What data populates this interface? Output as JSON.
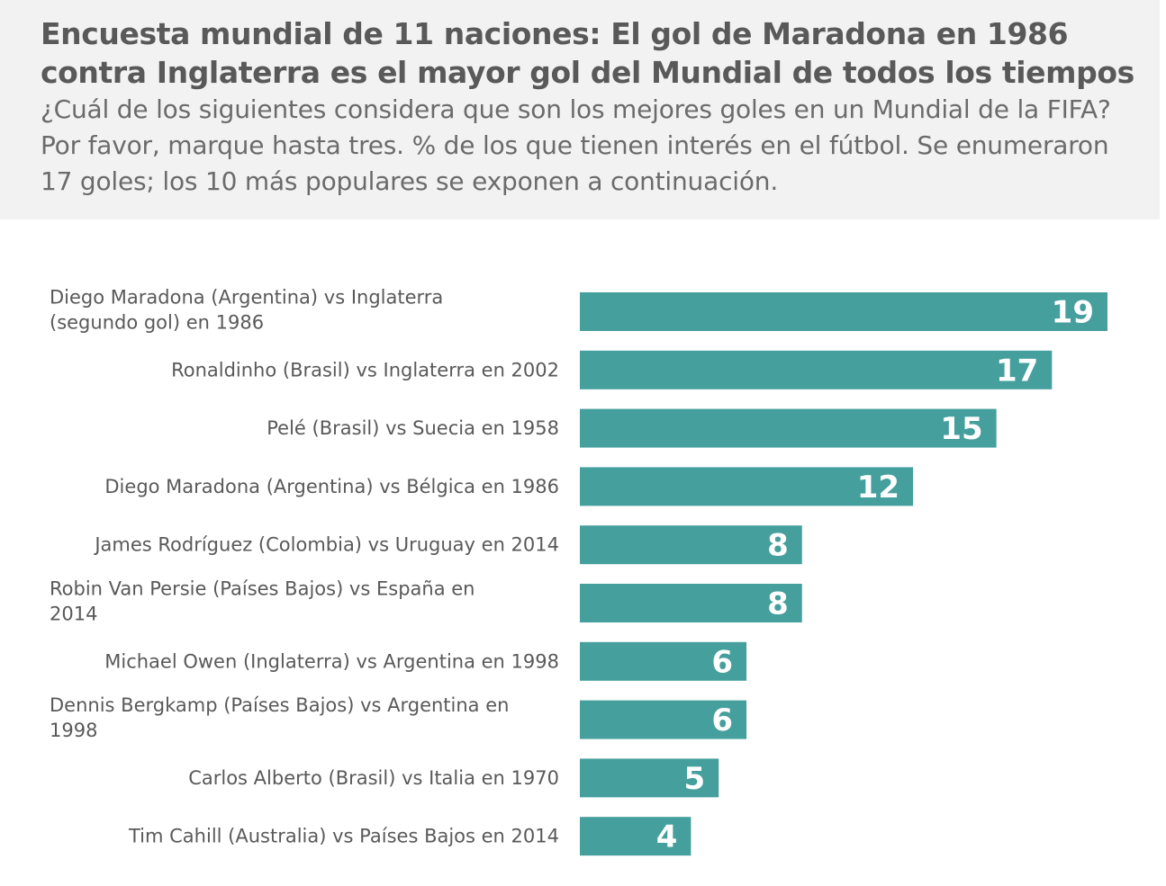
{
  "header": {
    "title": "Encuesta mundial de 11 naciones: El gol de Maradona en 1986 contra Inglaterra es el mayor gol del Mundial de todos los tiempos",
    "subtitle": "¿Cuál de los siguientes considera que son los mejores goles en un Mundial de la FIFA? Por favor, marque hasta tres. % de los que tienen interés en el fútbol. Se enumeraron 17 goles; los 10 más populares se exponen a continuación."
  },
  "colors": {
    "bar": "#459f9d",
    "header_bg": "#f2f2f2",
    "text": "#595959"
  },
  "chart_data": {
    "type": "bar",
    "orientation": "horizontal",
    "categories": [
      "Diego Maradona (Argentina) vs Inglaterra (segundo gol) en 1986",
      "Ronaldinho (Brasil) vs Inglaterra en 2002",
      "Pelé (Brasil) vs Suecia en 1958",
      "Diego Maradona (Argentina) vs Bélgica en 1986",
      "James Rodríguez (Colombia) vs Uruguay en 2014",
      "Robin Van Persie (Países Bajos) vs España en 2014",
      "Michael Owen (Inglaterra) vs Argentina en 1998",
      "Dennis Bergkamp (Países Bajos) vs Argentina en 1998",
      "Carlos Alberto (Brasil) vs Italia en 1970",
      "Tim Cahill (Australia) vs Países Bajos en 2014"
    ],
    "values": [
      19,
      17,
      15,
      12,
      8,
      8,
      6,
      6,
      5,
      4
    ],
    "data_labels": true,
    "xlim": [
      0,
      19
    ],
    "grid": false,
    "legend": "none"
  }
}
